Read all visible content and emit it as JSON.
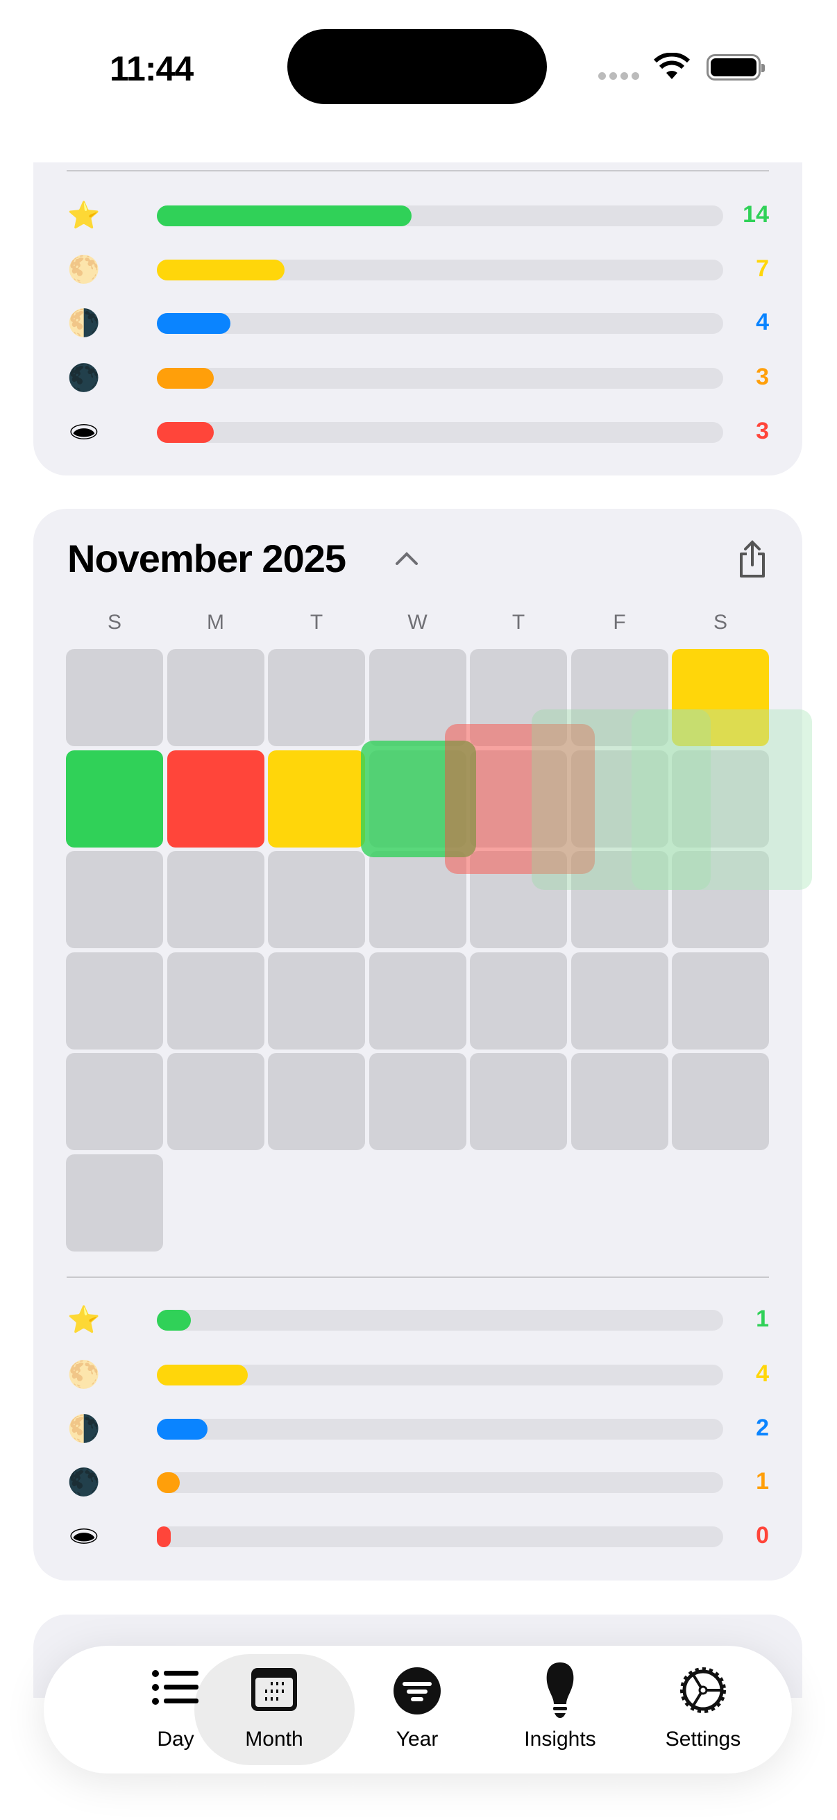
{
  "status_bar": {
    "time": "11:44"
  },
  "colors": {
    "green": "#30D158",
    "yellow": "#FFD60A",
    "blue": "#0A84FF",
    "orange": "#FF9F0A",
    "red": "#FF453A",
    "empty": "#D2D2D7"
  },
  "previous_month_summary": {
    "rows": [
      {
        "icon": "star-icon",
        "glyph": "⭐",
        "count": "14",
        "fill_percent": 45,
        "color": "#30D158"
      },
      {
        "icon": "full-moon-icon",
        "glyph": "🌕",
        "count": "7",
        "fill_percent": 22.5,
        "color": "#FFD60A"
      },
      {
        "icon": "half-moon-icon",
        "glyph": "🌗",
        "count": "4",
        "fill_percent": 13,
        "color": "#0A84FF"
      },
      {
        "icon": "new-moon-icon",
        "glyph": "🌑",
        "count": "3",
        "fill_percent": 10,
        "color": "#FF9F0A"
      },
      {
        "icon": "hole-icon",
        "glyph": "🕳",
        "count": "3",
        "fill_percent": 10,
        "color": "#FF453A"
      }
    ]
  },
  "month": {
    "title": "November 2025",
    "weekdays": [
      "S",
      "M",
      "T",
      "W",
      "T",
      "F",
      "S"
    ],
    "days": [
      {
        "day": 1,
        "color": "#FFD60A"
      },
      {
        "day": 2,
        "color": "#30D158"
      },
      {
        "day": 3,
        "color": "#FF453A"
      },
      {
        "day": 4,
        "color": "#FFD60A"
      }
    ],
    "first_weekday": 6,
    "day_count": 30,
    "summary": {
      "rows": [
        {
          "icon": "star-icon",
          "glyph": "⭐",
          "count": "1",
          "fill_percent": 6,
          "color": "#30D158"
        },
        {
          "icon": "full-moon-icon",
          "glyph": "🌕",
          "count": "4",
          "fill_percent": 16,
          "color": "#FFD60A"
        },
        {
          "icon": "half-moon-icon",
          "glyph": "🌗",
          "count": "2",
          "fill_percent": 9,
          "color": "#0A84FF"
        },
        {
          "icon": "new-moon-icon",
          "glyph": "🌑",
          "count": "1",
          "fill_percent": 4,
          "color": "#FF9F0A"
        },
        {
          "icon": "hole-icon",
          "glyph": "🕳",
          "count": "0",
          "fill_percent": 2.5,
          "color": "#FF453A"
        }
      ]
    }
  },
  "tabbar": {
    "selected": "Month",
    "tabs": [
      {
        "label": "Day"
      },
      {
        "label": "Month"
      },
      {
        "label": "Year"
      },
      {
        "label": "Insights"
      },
      {
        "label": "Settings"
      }
    ]
  }
}
